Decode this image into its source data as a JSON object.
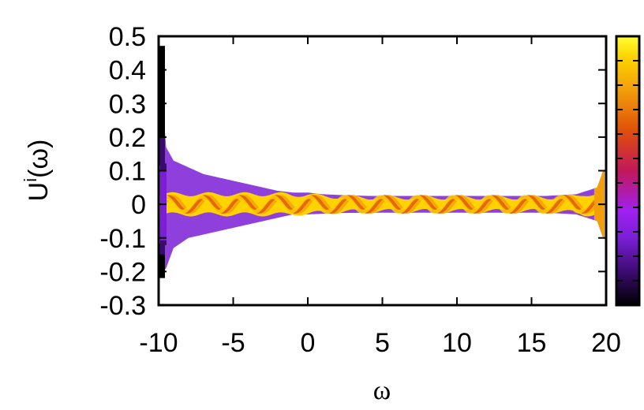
{
  "chart_data": {
    "type": "heatmap",
    "title": "",
    "xlabel": "ω",
    "ylabel": "U^i(ω)",
    "ylabel_base": "U",
    "ylabel_sup": "i",
    "ylabel_arg": "(ω)",
    "xlim": [
      -10,
      20
    ],
    "ylim": [
      -0.3,
      0.5
    ],
    "x_ticks": [
      -10,
      -5,
      0,
      5,
      10,
      15,
      20
    ],
    "x_tick_labels": [
      "-10",
      "-5",
      "0",
      "5",
      "10",
      "15",
      "20"
    ],
    "y_ticks": [
      0.5,
      0.4,
      0.3,
      0.2,
      0.1,
      0,
      -0.1,
      -0.2,
      -0.3
    ],
    "y_tick_labels": [
      "0.5",
      "0.4",
      "0.3",
      "0.2",
      "0.1",
      "0",
      "-0.1",
      "-0.2",
      "-0.3"
    ],
    "grid": false,
    "legend": "none",
    "colorbar": {
      "position": "right",
      "palette": [
        "#000000",
        "#3a0a6e",
        "#7b1fd6",
        "#a020f0",
        "#c2185b",
        "#e0500a",
        "#f29f0a",
        "#ffd200",
        "#ffff33"
      ]
    },
    "series": [
      {
        "x": [
          -10,
          -9.5,
          -9,
          -8,
          -7,
          -6,
          -5,
          -4,
          -3,
          -2,
          -1,
          0,
          1,
          2,
          4,
          6,
          8,
          10,
          12,
          14,
          16,
          18,
          19.4,
          19.8
        ],
        "upper": [
          0.47,
          0.17,
          0.13,
          0.11,
          0.09,
          0.08,
          0.07,
          0.06,
          0.05,
          0.04,
          0.035,
          0.035,
          0.03,
          0.028,
          0.025,
          0.025,
          0.025,
          0.025,
          0.025,
          0.025,
          0.025,
          0.03,
          0.05,
          0.1
        ],
        "lower": [
          -0.22,
          -0.19,
          -0.13,
          -0.1,
          -0.09,
          -0.08,
          -0.07,
          -0.06,
          -0.05,
          -0.04,
          -0.03,
          -0.03,
          -0.028,
          -0.026,
          -0.025,
          -0.025,
          -0.025,
          -0.025,
          -0.025,
          -0.025,
          -0.025,
          -0.03,
          -0.05,
          -0.1
        ]
      }
    ]
  }
}
